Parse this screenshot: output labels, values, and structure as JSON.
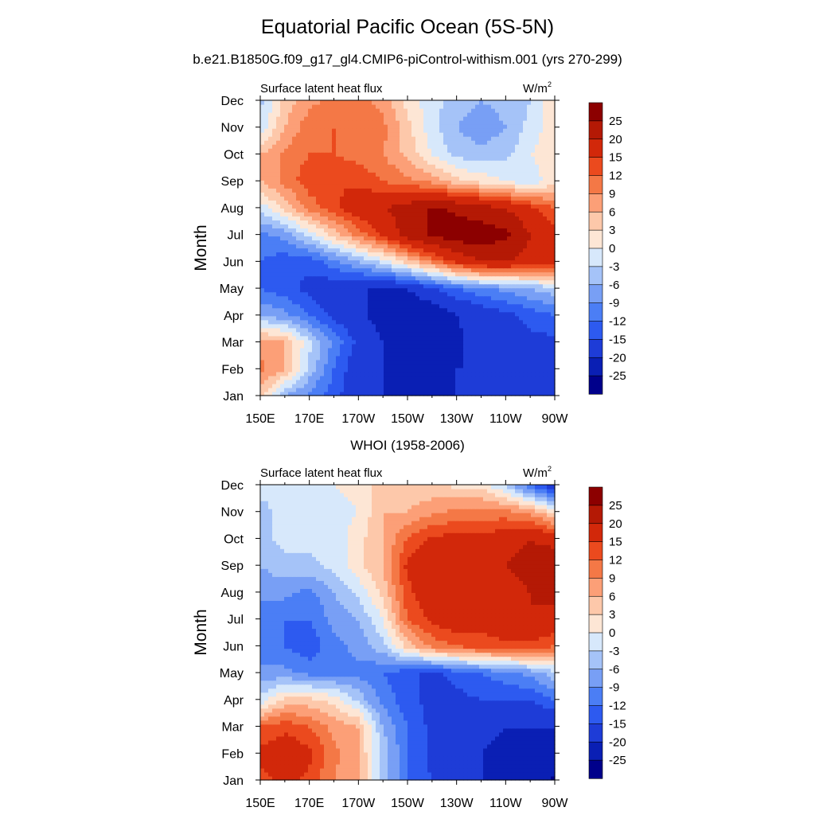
{
  "figure": {
    "title": "Equatorial Pacific Ocean (5S-5N)",
    "subtitle": "b.e21.B1850G.f09_g17_gl4.CMIP6-piControl-withism.001 (yrs 270-299)"
  },
  "colors": {
    "levels_palette": [
      "#00008b",
      "#0a1fb4",
      "#1e3cd7",
      "#2d5af0",
      "#4b7ef5",
      "#789ff5",
      "#a5c3f8",
      "#d7e8fb",
      "#fde6d5",
      "#fdc8aa",
      "#fc9f77",
      "#f47846",
      "#eb4a1e",
      "#d2280a",
      "#b41905",
      "#8c0000"
    ]
  },
  "chart_data": [
    {
      "type": "heatmap",
      "title": "",
      "left_label": "Surface latent heat flux",
      "right_label": "W/m",
      "right_label_sup": "2",
      "xlabel": "",
      "ylabel": "Month",
      "x_ticks": [
        "150E",
        "170E",
        "170W",
        "150W",
        "130W",
        "110W",
        "90W"
      ],
      "x_tick_lon": [
        150,
        170,
        190,
        210,
        230,
        250,
        270
      ],
      "xlim": [
        150,
        270
      ],
      "y_ticks": [
        "Jan",
        "Feb",
        "Mar",
        "Apr",
        "May",
        "Jun",
        "Jul",
        "Aug",
        "Sep",
        "Oct",
        "Nov",
        "Dec"
      ],
      "colorbar_labels": [
        "25",
        "20",
        "15",
        "12",
        "9",
        "6",
        "3",
        "0",
        "-3",
        "-6",
        "-9",
        "-12",
        "-15",
        "-20",
        "-25"
      ],
      "levels": [
        -25,
        -20,
        -15,
        -12,
        -9,
        -6,
        -3,
        0,
        3,
        6,
        9,
        12,
        15,
        20,
        25
      ],
      "z_grid_lon": [
        150,
        160,
        170,
        180,
        190,
        200,
        210,
        220,
        230,
        240,
        250,
        260,
        270
      ],
      "z_grid_months": [
        "Jan",
        "Feb",
        "Mar",
        "Apr",
        "May",
        "Jun",
        "Jul",
        "Aug",
        "Sep",
        "Oct",
        "Nov",
        "Dec"
      ],
      "z": [
        [
          4,
          -6,
          -10,
          -14,
          -18,
          -20,
          -20,
          -22,
          -20,
          -20,
          -18,
          -18,
          -16
        ],
        [
          10,
          6,
          -4,
          -12,
          -18,
          -20,
          -22,
          -22,
          -20,
          -20,
          -18,
          -16,
          -16
        ],
        [
          8,
          6,
          -2,
          -10,
          -16,
          -20,
          -22,
          -24,
          -21,
          -18,
          -18,
          -16,
          -16
        ],
        [
          -6,
          -8,
          -12,
          -16,
          -19,
          -22,
          -24,
          -24,
          -20,
          -18,
          -16,
          -14,
          -12
        ],
        [
          -12,
          -14,
          -16,
          -18,
          -20,
          -20,
          -20,
          -16,
          -12,
          -10,
          -8,
          -6,
          -4
        ],
        [
          -12,
          -14,
          -14,
          -10,
          -6,
          -2,
          4,
          10,
          16,
          20,
          20,
          18,
          16
        ],
        [
          -10,
          -8,
          -2,
          4,
          10,
          16,
          22,
          26,
          28,
          28,
          26,
          20,
          16
        ],
        [
          -2,
          4,
          10,
          14,
          18,
          20,
          22,
          26,
          24,
          22,
          20,
          16,
          12
        ],
        [
          6,
          10,
          14,
          15,
          14,
          12,
          10,
          8,
          4,
          2,
          0,
          -2,
          2
        ],
        [
          6,
          10,
          12,
          12,
          11,
          9,
          5,
          0,
          -4,
          -5,
          -4,
          0,
          2
        ],
        [
          -2,
          6,
          11,
          12,
          12,
          10,
          4,
          -2,
          -6,
          -8,
          -6,
          -2,
          2
        ],
        [
          -4,
          4,
          8,
          10,
          10,
          8,
          2,
          -2,
          -4,
          -6,
          -5,
          -3,
          2
        ]
      ]
    },
    {
      "type": "heatmap",
      "title": "WHOI (1958-2006)",
      "left_label": "Surface latent heat flux",
      "right_label": "W/m",
      "right_label_sup": "2",
      "xlabel": "",
      "ylabel": "Month",
      "x_ticks": [
        "150E",
        "170E",
        "170W",
        "150W",
        "130W",
        "110W",
        "90W"
      ],
      "x_tick_lon": [
        150,
        170,
        190,
        210,
        230,
        250,
        270
      ],
      "xlim": [
        150,
        270
      ],
      "y_ticks": [
        "Jan",
        "Feb",
        "Mar",
        "Apr",
        "May",
        "Jun",
        "Jul",
        "Aug",
        "Sep",
        "Oct",
        "Nov",
        "Dec"
      ],
      "colorbar_labels": [
        "25",
        "20",
        "15",
        "12",
        "9",
        "6",
        "3",
        "0",
        "-3",
        "-6",
        "-9",
        "-12",
        "-15",
        "-20",
        "-25"
      ],
      "levels": [
        -25,
        -20,
        -15,
        -12,
        -9,
        -6,
        -3,
        0,
        3,
        6,
        9,
        12,
        15,
        20,
        25
      ],
      "z_grid_lon": [
        150,
        160,
        170,
        180,
        190,
        200,
        210,
        220,
        230,
        240,
        250,
        260,
        270
      ],
      "z_grid_months": [
        "Jan",
        "Feb",
        "Mar",
        "Apr",
        "May",
        "Jun",
        "Jul",
        "Aug",
        "Sep",
        "Oct",
        "Nov",
        "Dec"
      ],
      "z": [
        [
          14,
          16,
          14,
          9,
          6,
          -4,
          -12,
          -15,
          -18,
          -20,
          -20,
          -22,
          -26
        ],
        [
          16,
          18,
          16,
          10,
          6,
          -4,
          -12,
          -16,
          -18,
          -20,
          -22,
          -22,
          -22
        ],
        [
          12,
          14,
          12,
          8,
          6,
          -6,
          -12,
          -16,
          -16,
          -18,
          -20,
          -20,
          -20
        ],
        [
          -2,
          4,
          4,
          2,
          -4,
          -10,
          -14,
          -16,
          -16,
          -15,
          -15,
          -15,
          -12
        ],
        [
          -8,
          -8,
          -10,
          -10,
          -10,
          -12,
          -14,
          -16,
          -14,
          -12,
          -10,
          -8,
          -4
        ],
        [
          -12,
          -12,
          -14,
          -10,
          -8,
          -4,
          4,
          10,
          12,
          14,
          14,
          14,
          12
        ],
        [
          -12,
          -12,
          -12,
          -8,
          -6,
          0,
          12,
          16,
          18,
          16,
          18,
          20,
          18
        ],
        [
          -8,
          -8,
          -10,
          -6,
          -2,
          4,
          14,
          18,
          20,
          18,
          18,
          20,
          22
        ],
        [
          -6,
          -4,
          -4,
          -2,
          2,
          6,
          16,
          18,
          20,
          18,
          20,
          22,
          24
        ],
        [
          -4,
          -2,
          -2,
          -2,
          2,
          6,
          12,
          16,
          16,
          16,
          18,
          20,
          18
        ],
        [
          -4,
          -2,
          -2,
          -2,
          0,
          6,
          6,
          8,
          10,
          10,
          10,
          8,
          2
        ],
        [
          -2,
          -2,
          0,
          0,
          2,
          4,
          4,
          4,
          2,
          2,
          -4,
          -12,
          -18
        ]
      ]
    }
  ]
}
